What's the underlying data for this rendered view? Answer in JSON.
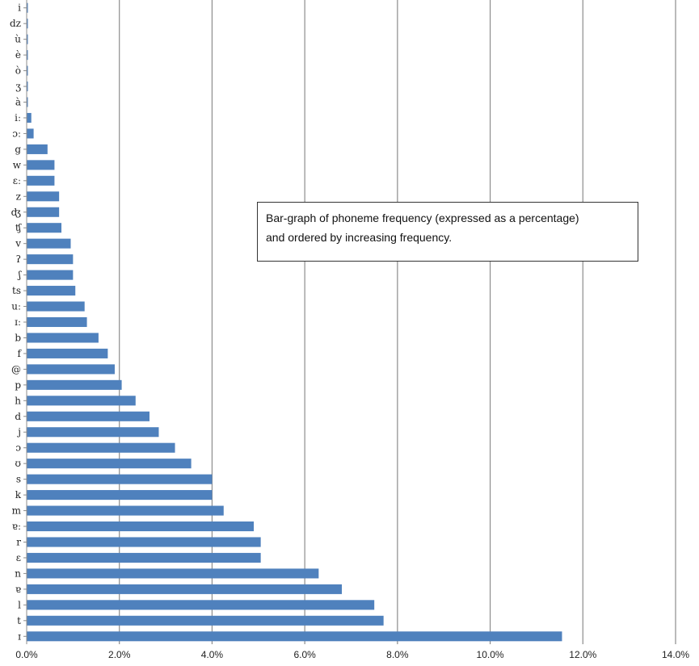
{
  "chart_data": {
    "type": "bar",
    "orientation": "horizontal",
    "categories": [
      "ɪ",
      "t",
      "l",
      "ɐ",
      "n",
      "ɛ",
      "r",
      "ɐː",
      "m",
      "k",
      "s",
      "ʊ",
      "ɔ",
      "j",
      "d",
      "h",
      "p",
      "@",
      "f",
      "b",
      "ɪː",
      "uː",
      "ts",
      "ʃ",
      "ʔ",
      "v",
      "ʧ",
      "ʤ",
      "z",
      "ɛː",
      "w",
      "g",
      "ɔː",
      "iː",
      "à",
      "ʒ",
      "ò",
      "è",
      "ù",
      "dz",
      "i"
    ],
    "values": [
      11.55,
      7.7,
      7.5,
      6.8,
      6.3,
      5.05,
      5.05,
      4.9,
      4.25,
      4.0,
      4.0,
      3.55,
      3.2,
      2.85,
      2.65,
      2.35,
      2.05,
      1.9,
      1.75,
      1.55,
      1.3,
      1.25,
      1.05,
      1.0,
      1.0,
      0.95,
      0.75,
      0.7,
      0.7,
      0.6,
      0.6,
      0.45,
      0.15,
      0.1,
      0.02,
      0.02,
      0.02,
      0.02,
      0.02,
      0.02,
      0.02
    ],
    "xlim": [
      0,
      14
    ],
    "xticks": [
      "0.0%",
      "2.0%",
      "4.0%",
      "6.0%",
      "8.0%",
      "10.0%",
      "12.0%",
      "14.0%"
    ],
    "grid": "vertical",
    "bar_color": "#4f81bd",
    "annotation": [
      "Bar-graph of phoneme frequency (expressed as a percentage)",
      "and ordered by increasing frequency."
    ]
  }
}
